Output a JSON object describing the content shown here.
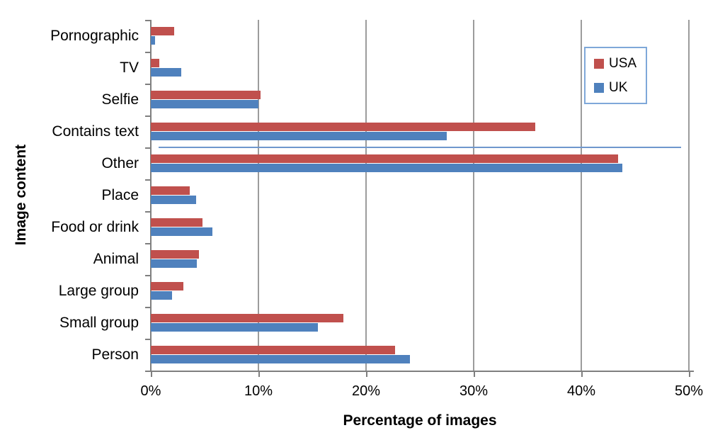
{
  "chart_data": {
    "type": "bar",
    "orientation": "horizontal",
    "xlabel": "Percentage of images",
    "ylabel": "Image content",
    "categories": [
      "Pornographic",
      "TV",
      "Selfie",
      "Contains text",
      "Other",
      "Place",
      "Food or drink",
      "Animal",
      "Large group",
      "Small group",
      "Person"
    ],
    "series": [
      {
        "name": "USA",
        "color": "#C0504D",
        "values": [
          2.2,
          0.8,
          10.2,
          35.7,
          43.4,
          3.6,
          4.8,
          4.5,
          3.0,
          17.9,
          22.7
        ]
      },
      {
        "name": "UK",
        "color": "#4F81BD",
        "values": [
          0.4,
          2.8,
          10.0,
          27.5,
          43.8,
          4.2,
          5.7,
          4.3,
          2.0,
          15.5,
          24.1
        ]
      }
    ],
    "x_ticks": [
      "0%",
      "10%",
      "20%",
      "30%",
      "40%",
      "50%"
    ],
    "xlim": [
      0,
      50
    ],
    "grid": true,
    "legend_position": "top-right",
    "artifact_line": {
      "color": "#6f97cd",
      "start_percent": 0.7,
      "end_percent": 49.3,
      "at_category_boundary_above": "Other"
    }
  },
  "colors": {
    "usa_bar": "#C0504D",
    "uk_bar": "#4F81BD",
    "gridline": "#9c9c9c",
    "axis": "#7f7f7f",
    "legend_border": "#7fa8d9",
    "background": "#ffffff",
    "text": "#000000"
  }
}
